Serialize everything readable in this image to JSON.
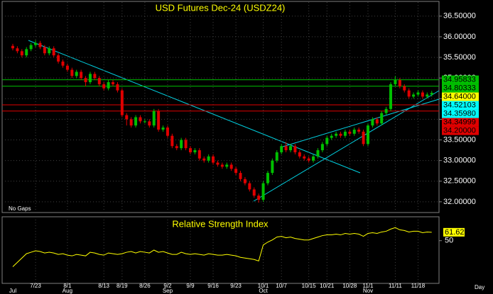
{
  "chart_data": {
    "type": "candlestick",
    "title": "USD Futures Dec-24 (USDZ24)",
    "note": "No Gaps",
    "x_unit": "Day",
    "categories": [
      null,
      null,
      null,
      null,
      null,
      "7/23",
      null,
      null,
      null,
      null,
      null,
      null,
      "8/1",
      null,
      null,
      null,
      null,
      null,
      null,
      null,
      "8/13",
      null,
      null,
      null,
      "8/19",
      null,
      null,
      null,
      null,
      "8/26",
      null,
      null,
      null,
      null,
      "9/2",
      null,
      null,
      null,
      null,
      "9/9",
      null,
      null,
      null,
      null,
      "9/16",
      null,
      null,
      null,
      null,
      "9/23",
      null,
      null,
      null,
      null,
      null,
      "10/1",
      null,
      null,
      null,
      "10/7",
      null,
      null,
      null,
      null,
      null,
      "10/15",
      null,
      null,
      null,
      "10/21",
      null,
      null,
      null,
      null,
      "10/28",
      null,
      null,
      null,
      "11/1",
      null,
      null,
      null,
      null,
      null,
      "11/11",
      null,
      null,
      null,
      null,
      "11/18",
      null,
      null,
      null
    ],
    "months": [
      "Jul",
      null,
      null,
      null,
      null,
      null,
      null,
      null,
      null,
      null,
      null,
      null,
      "Aug",
      null,
      null,
      null,
      null,
      null,
      null,
      null,
      null,
      null,
      null,
      null,
      null,
      null,
      null,
      null,
      null,
      null,
      null,
      null,
      null,
      null,
      "Sep",
      null,
      null,
      null,
      null,
      null,
      null,
      null,
      null,
      null,
      null,
      null,
      null,
      null,
      null,
      null,
      null,
      null,
      null,
      null,
      null,
      "Oct",
      null,
      null,
      null,
      null,
      null,
      null,
      null,
      null,
      null,
      null,
      null,
      null,
      null,
      null,
      null,
      null,
      null,
      null,
      null,
      null,
      null,
      null,
      "Nov",
      null,
      null,
      null,
      null,
      null,
      null,
      null,
      null,
      null,
      null,
      null,
      null,
      null,
      null
    ],
    "open": [
      35.78,
      35.72,
      35.65,
      35.55,
      35.7,
      35.8,
      35.85,
      35.75,
      35.6,
      35.72,
      35.55,
      35.4,
      35.3,
      35.2,
      35.05,
      35.15,
      35.0,
      34.9,
      35.1,
      35.0,
      34.85,
      34.75,
      34.9,
      34.85,
      34.7,
      34.1,
      34.0,
      33.85,
      34.05,
      33.95,
      33.95,
      33.85,
      34.2,
      33.75,
      33.8,
      33.6,
      33.35,
      33.3,
      33.5,
      33.3,
      33.2,
      33.25,
      33.05,
      33.0,
      33.1,
      32.95,
      32.9,
      32.85,
      32.9,
      32.8,
      32.7,
      32.55,
      32.45,
      32.3,
      32.15,
      32.05,
      32.45,
      32.7,
      33.0,
      33.2,
      33.35,
      33.25,
      33.35,
      33.2,
      33.1,
      33.05,
      33.0,
      33.1,
      33.25,
      33.4,
      33.55,
      33.6,
      33.65,
      33.6,
      33.7,
      33.65,
      33.75,
      33.7,
      33.4,
      33.85,
      34.0,
      33.9,
      34.15,
      34.25,
      34.85,
      34.95,
      34.8,
      34.7,
      34.55,
      34.6,
      34.65,
      34.55,
      34.6
    ],
    "high": [
      35.83,
      35.77,
      35.7,
      35.75,
      35.85,
      35.92,
      35.9,
      35.8,
      35.77,
      35.77,
      35.6,
      35.45,
      35.35,
      35.25,
      35.2,
      35.2,
      35.05,
      35.15,
      35.15,
      35.05,
      34.9,
      34.95,
      34.95,
      34.9,
      34.75,
      34.15,
      34.05,
      34.1,
      34.1,
      34.0,
      34.0,
      34.25,
      34.25,
      33.85,
      33.85,
      33.65,
      33.4,
      33.55,
      33.55,
      33.35,
      33.3,
      33.3,
      33.1,
      33.15,
      33.15,
      33.0,
      32.95,
      32.95,
      32.95,
      32.85,
      32.75,
      32.6,
      32.5,
      32.35,
      32.2,
      32.5,
      32.75,
      33.05,
      33.25,
      33.4,
      33.45,
      33.4,
      33.4,
      33.25,
      33.15,
      33.1,
      33.15,
      33.3,
      33.45,
      33.6,
      33.65,
      33.7,
      33.7,
      33.75,
      33.75,
      33.8,
      33.8,
      33.75,
      33.9,
      34.05,
      34.05,
      34.2,
      34.3,
      34.9,
      35.05,
      35.0,
      34.85,
      34.75,
      34.65,
      34.7,
      34.7,
      34.65,
      34.69
    ],
    "low": [
      35.67,
      35.6,
      35.5,
      35.5,
      35.65,
      35.75,
      35.7,
      35.55,
      35.55,
      35.5,
      35.35,
      35.25,
      35.15,
      35.0,
      35.0,
      34.95,
      34.8,
      34.85,
      34.95,
      34.8,
      34.7,
      34.7,
      34.8,
      34.65,
      34.05,
      33.85,
      33.8,
      33.8,
      33.9,
      33.9,
      33.8,
      33.8,
      33.7,
      33.7,
      33.55,
      33.3,
      33.25,
      33.25,
      33.25,
      33.15,
      33.15,
      33.0,
      32.95,
      32.95,
      32.9,
      32.85,
      32.8,
      32.8,
      32.75,
      32.65,
      32.5,
      32.4,
      32.25,
      32.1,
      31.98,
      32.0,
      32.4,
      32.65,
      32.95,
      33.15,
      33.2,
      33.2,
      33.15,
      33.05,
      33.0,
      32.95,
      32.95,
      33.05,
      33.2,
      33.35,
      33.5,
      33.55,
      33.55,
      33.55,
      33.6,
      33.6,
      33.65,
      33.35,
      33.35,
      33.8,
      33.85,
      33.85,
      34.1,
      34.2,
      34.8,
      34.75,
      34.65,
      34.5,
      34.5,
      34.55,
      34.5,
      34.5,
      34.55
    ],
    "close": [
      35.72,
      35.65,
      35.55,
      35.7,
      35.8,
      35.85,
      35.75,
      35.6,
      35.72,
      35.55,
      35.4,
      35.3,
      35.2,
      35.05,
      35.15,
      35.0,
      34.9,
      35.1,
      35.0,
      34.85,
      34.75,
      34.9,
      34.85,
      34.7,
      34.1,
      34.0,
      33.85,
      34.05,
      33.95,
      33.95,
      33.85,
      34.2,
      33.75,
      33.8,
      33.6,
      33.35,
      33.3,
      33.5,
      33.3,
      33.2,
      33.25,
      33.05,
      33.0,
      33.1,
      32.95,
      32.9,
      32.85,
      32.9,
      32.8,
      32.7,
      32.55,
      32.45,
      32.3,
      32.15,
      32.05,
      32.45,
      32.7,
      33.0,
      33.2,
      33.35,
      33.25,
      33.35,
      33.2,
      33.1,
      33.05,
      33.0,
      33.1,
      33.25,
      33.4,
      33.55,
      33.6,
      33.65,
      33.6,
      33.7,
      33.65,
      33.75,
      33.7,
      33.4,
      33.85,
      34.0,
      33.9,
      34.15,
      34.25,
      34.85,
      34.95,
      34.8,
      34.7,
      34.55,
      34.6,
      34.65,
      34.55,
      34.6,
      34.64
    ],
    "up_color": "#00c000",
    "down_color": "#e00000",
    "ylim": [
      31.74,
      36.84
    ],
    "yticks": [
      {
        "value": 32,
        "label": "32.00000"
      },
      {
        "value": 32.5,
        "label": "32.50000"
      },
      {
        "value": 33,
        "label": "33.00000"
      },
      {
        "value": 33.5,
        "label": "33.50000"
      },
      {
        "value": 34,
        "label": "34.00000"
      },
      {
        "value": 34.5,
        "label": "34.50000"
      },
      {
        "value": 35,
        "label": "35.00000"
      },
      {
        "value": 35.5,
        "label": "35.50000"
      },
      {
        "value": 36,
        "label": "36.00000"
      },
      {
        "value": 36.5,
        "label": "36.50000"
      }
    ],
    "levels": [
      {
        "value": 34.95833,
        "color": "#00c000",
        "line": true
      },
      {
        "value": 34.80333,
        "color": "#00c000",
        "line": true
      },
      {
        "value": 34.64,
        "label": "34.64000",
        "color": "#ffff00",
        "line": false
      },
      {
        "value": 34.52103,
        "color": "#00ffff",
        "line": false
      },
      {
        "value": 34.3598,
        "label": "34.35980",
        "color": "#00ffff",
        "line": false
      },
      {
        "value": 34.34999,
        "color": "#e00000",
        "line": true
      },
      {
        "value": 34.2,
        "label": "34.20000",
        "color": "#e00000",
        "line": true
      }
    ],
    "grid": true,
    "rsi": {
      "title": "Relative Strength Index",
      "color": "#ffff00",
      "values": [
        14,
        20,
        26,
        32,
        34,
        36,
        35,
        33,
        34,
        33,
        31,
        32,
        30,
        29,
        31,
        30,
        29,
        34,
        33,
        31,
        30,
        33,
        32,
        31,
        32,
        34,
        35,
        33,
        35,
        34,
        33,
        37,
        34,
        35,
        33,
        31,
        31,
        34,
        32,
        31,
        32,
        31,
        30,
        32,
        31,
        30,
        30,
        31,
        30,
        29,
        27,
        26,
        25,
        24,
        22,
        44,
        48,
        51,
        55,
        56,
        54,
        55,
        53,
        52,
        51,
        51,
        53,
        55,
        57,
        58,
        58,
        59,
        58,
        60,
        59,
        60,
        59,
        56,
        60,
        61,
        60,
        62,
        63,
        66,
        68,
        65,
        64,
        62,
        63,
        63,
        61,
        62,
        61.62
      ],
      "last_label": "61.62",
      "ylim": [
        -9,
        83
      ],
      "yticks": [
        50
      ]
    }
  }
}
